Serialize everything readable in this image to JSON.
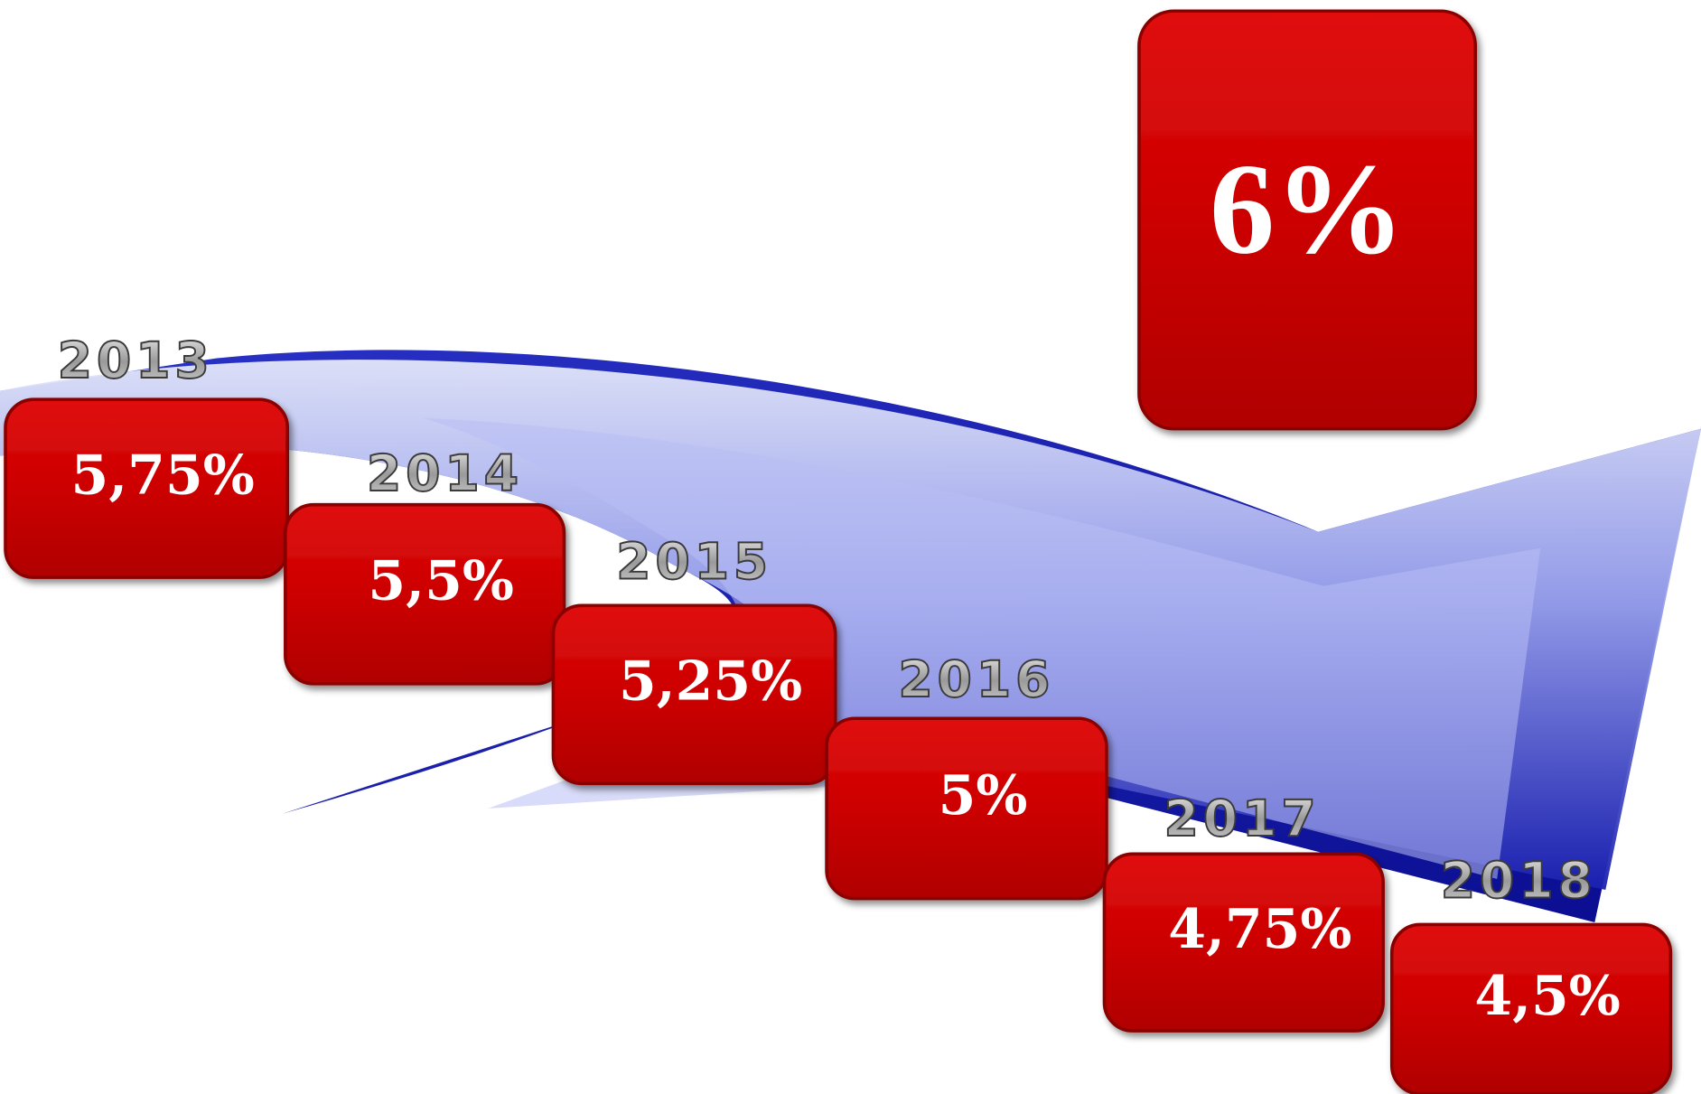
{
  "highlight": "6%",
  "steps": [
    {
      "year": "2013",
      "rate": "5,75%"
    },
    {
      "year": "2014",
      "rate": "5,5%"
    },
    {
      "year": "2015",
      "rate": "5,25%"
    },
    {
      "year": "2016",
      "rate": "5%"
    },
    {
      "year": "2017",
      "rate": "4,75%"
    },
    {
      "year": "2018",
      "rate": "4,5%"
    }
  ]
}
